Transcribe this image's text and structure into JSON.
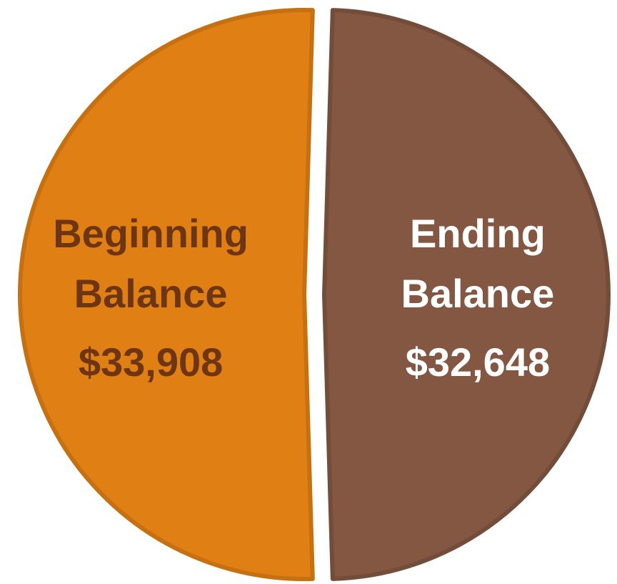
{
  "chart_data": {
    "type": "pie",
    "categories": [
      "Beginning Balance",
      "Ending Balance"
    ],
    "values": [
      33908,
      32648
    ],
    "value_labels": [
      "$33,908",
      "$32,648"
    ],
    "colors": [
      "#e07f13",
      "#835741"
    ]
  }
}
